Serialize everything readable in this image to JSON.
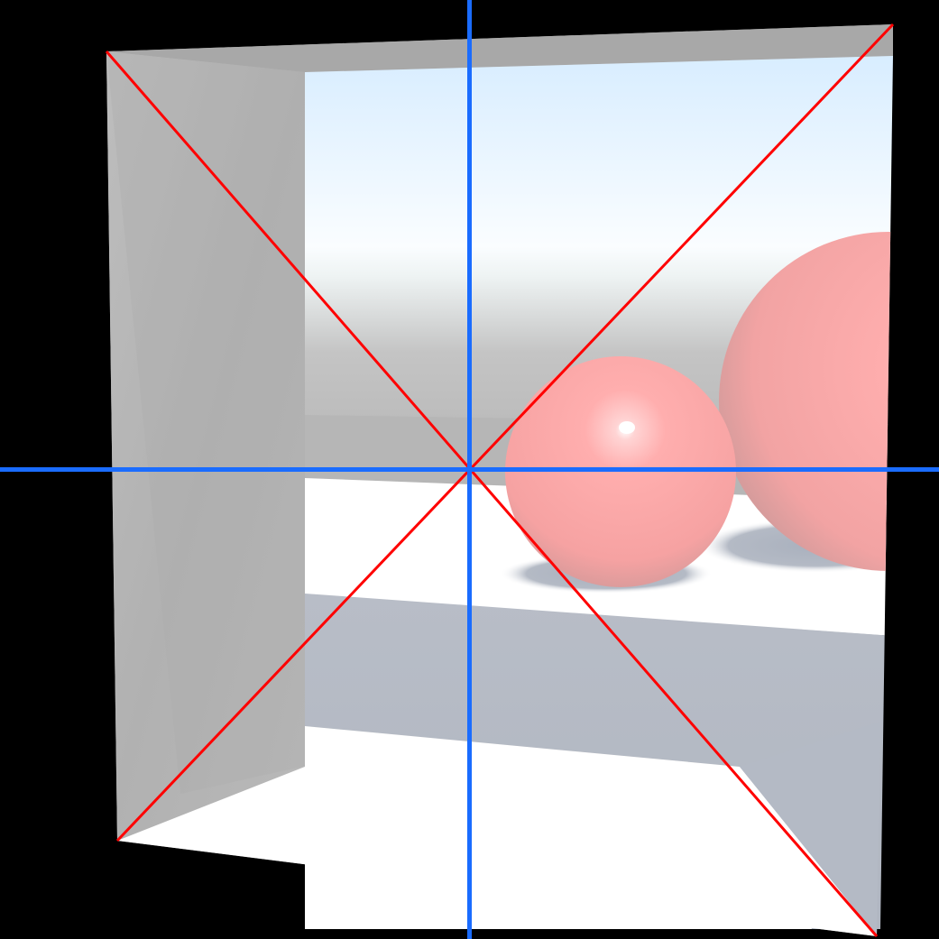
{
  "scene": {
    "background_color": "#000000",
    "frame_color": "#b3b3b3",
    "frame_top_color": "#a9a9a9",
    "left_wall_color": "#b8b8b8",
    "sky_top_color": "#dcefff",
    "sky_horizon_color": "#ffffff",
    "ground_fog_color": "#b7b7b7",
    "floor_color": "#ffffff",
    "shadow_color": "#b3b8c3",
    "sphere_color": "#ffa8a8",
    "sphere_highlight_color": "#ffffff",
    "crosshair_color": "#1a6cff",
    "diagonal_color": "#ff0000",
    "sphere_count": 2
  }
}
